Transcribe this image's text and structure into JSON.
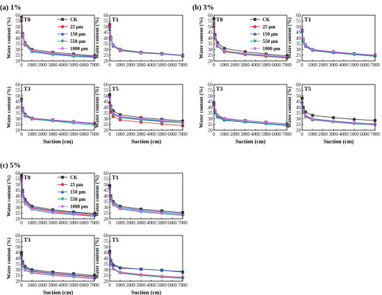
{
  "figure": {
    "ylabel": "Water content (%)",
    "xlabel": "Suction (cm)",
    "legend": [
      "CK",
      "25 μm",
      "150 μm",
      "550 μm",
      "1000 μm"
    ],
    "colors": {
      "CK": "#3a3a3a",
      "25 μm": "#e8333a",
      "150 μm": "#2b57c8",
      "550 μm": "#1aa58a",
      "1000 μm": "#c76fe0"
    },
    "x_ticks": [
      "0",
      "1000",
      "2000",
      "3000",
      "4000",
      "5000",
      "6000",
      "7000"
    ],
    "y_ticks": [
      "20",
      "25",
      "30",
      "35",
      "40",
      "45",
      "50",
      "55",
      "60"
    ]
  },
  "chart_data": [
    {
      "type": "line",
      "group": "(a) 1%",
      "title": "T0",
      "xlim": [
        0,
        7000
      ],
      "ylim": [
        20,
        60
      ],
      "x": [
        0,
        100,
        330,
        1000,
        3000,
        5000,
        7000
      ],
      "series": [
        {
          "name": "CK",
          "values": [
            58,
            44,
            36,
            30,
            27.5,
            26,
            24.5
          ]
        },
        {
          "name": "25 μm",
          "values": [
            55,
            42,
            34,
            29,
            26.5,
            25,
            24
          ]
        },
        {
          "name": "150 μm",
          "values": [
            57,
            43,
            35,
            28.5,
            26,
            24.5,
            23.5
          ]
        },
        {
          "name": "550 μm",
          "values": [
            56,
            42,
            34,
            28,
            25.5,
            24,
            23
          ]
        },
        {
          "name": "1000 μm",
          "values": [
            57,
            43,
            35,
            29,
            26.5,
            25,
            24
          ]
        }
      ]
    },
    {
      "type": "line",
      "group": "(a) 1%",
      "title": "T1",
      "xlim": [
        0,
        7000
      ],
      "ylim": [
        20,
        60
      ],
      "x": [
        0,
        100,
        330,
        1000,
        3000,
        5000,
        7000
      ],
      "series": [
        {
          "name": "CK",
          "values": [
            50,
            40,
            34,
            30,
            27.5,
            26.5,
            25
          ]
        },
        {
          "name": "25 μm",
          "values": [
            52,
            41,
            34,
            29.5,
            27,
            26,
            24.5
          ]
        },
        {
          "name": "150 μm",
          "values": [
            48,
            39,
            33,
            29,
            27,
            26,
            24.5
          ]
        },
        {
          "name": "550 μm",
          "values": [
            49,
            39,
            33,
            29,
            27,
            26,
            24.5
          ]
        },
        {
          "name": "1000 μm",
          "values": [
            50,
            40,
            34,
            29.5,
            27,
            26,
            25
          ]
        }
      ]
    },
    {
      "type": "line",
      "group": "(a) 1%",
      "title": "T3",
      "xlim": [
        0,
        7000
      ],
      "ylim": [
        20,
        60
      ],
      "x": [
        0,
        100,
        330,
        1000,
        3000,
        5000,
        7000
      ],
      "series": [
        {
          "name": "CK",
          "values": [
            47,
            39,
            34,
            30.5,
            29,
            27.5,
            26
          ]
        },
        {
          "name": "25 μm",
          "values": [
            46,
            38,
            33,
            30,
            28.5,
            27,
            25.5
          ]
        },
        {
          "name": "150 μm",
          "values": [
            47,
            38,
            33,
            30,
            28.5,
            27,
            25.5
          ]
        },
        {
          "name": "550 μm",
          "values": [
            45,
            37,
            32,
            29.5,
            28,
            26,
            24.5
          ]
        },
        {
          "name": "1000 μm",
          "values": [
            46,
            38,
            33,
            30,
            29,
            27.5,
            26
          ]
        }
      ]
    },
    {
      "type": "line",
      "group": "(a) 1%",
      "title": "T5",
      "xlim": [
        0,
        7000
      ],
      "ylim": [
        20,
        60
      ],
      "x": [
        0,
        100,
        330,
        1000,
        3000,
        5000,
        7000
      ],
      "series": [
        {
          "name": "CK",
          "values": [
            51,
            41,
            37,
            33.5,
            31,
            29.5,
            28
          ]
        },
        {
          "name": "25 μm",
          "values": [
            44,
            36,
            32,
            29,
            27,
            25.5,
            24
          ]
        },
        {
          "name": "150 μm",
          "values": [
            50,
            40,
            35,
            31.5,
            29.5,
            28,
            27
          ]
        },
        {
          "name": "550 μm",
          "values": [
            48,
            39,
            34,
            31,
            29,
            27.5,
            26.5
          ]
        },
        {
          "name": "1000 μm",
          "values": [
            49,
            40,
            35,
            32,
            30,
            28.5,
            27
          ]
        }
      ]
    },
    {
      "type": "line",
      "group": "(b) 3%",
      "title": "T0",
      "xlim": [
        0,
        7000
      ],
      "ylim": [
        20,
        60
      ],
      "x": [
        0,
        100,
        330,
        1000,
        3000,
        5000,
        7000
      ],
      "series": [
        {
          "name": "CK",
          "values": [
            57,
            43,
            36,
            31,
            28,
            26,
            24.5
          ]
        },
        {
          "name": "25 μm",
          "values": [
            50,
            40,
            33,
            28,
            25.5,
            24,
            22.5
          ]
        },
        {
          "name": "150 μm",
          "values": [
            53,
            41,
            34,
            29,
            26.5,
            25,
            23.5
          ]
        },
        {
          "name": "550 μm",
          "values": [
            52,
            40,
            33,
            28.5,
            26,
            24.5,
            23
          ]
        },
        {
          "name": "1000 μm",
          "values": [
            54,
            41,
            34,
            29,
            26.5,
            25,
            23.5
          ]
        }
      ]
    },
    {
      "type": "line",
      "group": "(b) 3%",
      "title": "T1",
      "xlim": [
        0,
        7000
      ],
      "ylim": [
        20,
        60
      ],
      "x": [
        0,
        100,
        330,
        1000,
        3000,
        5000,
        7000
      ],
      "series": [
        {
          "name": "CK",
          "values": [
            47,
            39,
            34,
            30,
            28,
            26.5,
            25
          ]
        },
        {
          "name": "25 μm",
          "values": [
            46,
            38,
            33,
            29.5,
            27.5,
            26,
            24.5
          ]
        },
        {
          "name": "150 μm",
          "values": [
            46,
            38,
            33,
            29.5,
            27.5,
            26,
            24.5
          ]
        },
        {
          "name": "550 μm",
          "values": [
            45,
            37,
            32.5,
            29,
            27,
            25.5,
            24
          ]
        },
        {
          "name": "1000 μm",
          "values": [
            47,
            39,
            34,
            30,
            28,
            26.5,
            25
          ]
        }
      ]
    },
    {
      "type": "line",
      "group": "(b) 3%",
      "title": "T3",
      "xlim": [
        0,
        7000
      ],
      "ylim": [
        20,
        60
      ],
      "x": [
        0,
        100,
        330,
        1000,
        3000,
        5000,
        7000
      ],
      "series": [
        {
          "name": "CK",
          "values": [
            44,
            37,
            33,
            30,
            28.5,
            27,
            25.5
          ]
        },
        {
          "name": "25 μm",
          "values": [
            42,
            36,
            32,
            29,
            27.5,
            26,
            24.5
          ]
        },
        {
          "name": "150 μm",
          "values": [
            43,
            36,
            32,
            29,
            27.5,
            26,
            24.5
          ]
        },
        {
          "name": "550 μm",
          "values": [
            42,
            35,
            31,
            28.5,
            27,
            25.5,
            24
          ]
        },
        {
          "name": "1000 μm",
          "values": [
            45,
            38,
            33.5,
            30.5,
            28.5,
            27,
            25.5
          ]
        }
      ]
    },
    {
      "type": "line",
      "group": "(b) 3%",
      "title": "T5",
      "xlim": [
        0,
        7000
      ],
      "ylim": [
        20,
        60
      ],
      "x": [
        0,
        100,
        330,
        1000,
        3000,
        5000,
        7000
      ],
      "series": [
        {
          "name": "CK",
          "values": [
            48,
            40,
            36,
            33,
            31,
            29.5,
            28.5
          ]
        },
        {
          "name": "25 μm",
          "values": [
            44,
            36,
            32,
            29,
            27.5,
            26,
            25
          ]
        },
        {
          "name": "150 μm",
          "values": [
            45,
            37,
            33,
            30,
            28,
            26.5,
            25.5
          ]
        },
        {
          "name": "550 μm",
          "values": [
            43,
            35.5,
            31.5,
            29,
            27,
            25.5,
            24.5
          ]
        },
        {
          "name": "1000 μm",
          "values": [
            44,
            36.5,
            32.5,
            29.5,
            27.5,
            26,
            25
          ]
        }
      ]
    },
    {
      "type": "line",
      "group": "(c) 5%",
      "title": "T0",
      "xlim": [
        0,
        7000
      ],
      "ylim": [
        20,
        60
      ],
      "x": [
        0,
        100,
        330,
        1000,
        3000,
        5000,
        7000
      ],
      "series": [
        {
          "name": "CK",
          "values": [
            58,
            45,
            37,
            31,
            28,
            26,
            24.5
          ]
        },
        {
          "name": "25 μm",
          "values": [
            55,
            43,
            35,
            29.5,
            26.5,
            24.5,
            23
          ]
        },
        {
          "name": "150 μm",
          "values": [
            57,
            44,
            36,
            30,
            27,
            25.5,
            24
          ]
        },
        {
          "name": "550 μm",
          "values": [
            52,
            40,
            33,
            28,
            25,
            23.5,
            22
          ]
        },
        {
          "name": "1000 μm",
          "values": [
            54,
            41,
            34,
            28.5,
            25.5,
            24,
            22.5
          ]
        }
      ]
    },
    {
      "type": "line",
      "group": "(c) 5%",
      "title": "T1",
      "xlim": [
        0,
        7000
      ],
      "ylim": [
        20,
        60
      ],
      "x": [
        0,
        100,
        330,
        1000,
        3000,
        5000,
        7000
      ],
      "series": [
        {
          "name": "CK",
          "values": [
            49,
            40,
            35,
            31,
            28.5,
            27,
            25.5
          ]
        },
        {
          "name": "25 μm",
          "values": [
            47,
            38,
            33,
            29,
            26.5,
            25,
            23.5
          ]
        },
        {
          "name": "150 μm",
          "values": [
            48,
            39,
            34,
            30,
            27.5,
            26,
            24.5
          ]
        },
        {
          "name": "550 μm",
          "values": [
            46,
            37,
            32,
            28.5,
            26,
            24.5,
            23
          ]
        },
        {
          "name": "1000 μm",
          "values": [
            47,
            38,
            33,
            29,
            26.5,
            25,
            23.5
          ]
        }
      ]
    },
    {
      "type": "line",
      "group": "(c) 5%",
      "title": "T3",
      "xlim": [
        0,
        7000
      ],
      "ylim": [
        20,
        60
      ],
      "x": [
        0,
        100,
        330,
        1000,
        3000,
        5000,
        7000
      ],
      "series": [
        {
          "name": "CK",
          "values": [
            45,
            37,
            33,
            30,
            28,
            26.5,
            25
          ]
        },
        {
          "name": "25 μm",
          "values": [
            43,
            35.5,
            31.5,
            28.5,
            26.5,
            25,
            23.5
          ]
        },
        {
          "name": "150 μm",
          "values": [
            44,
            36,
            32,
            29,
            27,
            25.5,
            24
          ]
        },
        {
          "name": "550 μm",
          "values": [
            41,
            34,
            30,
            27.5,
            25.5,
            24,
            22.5
          ]
        },
        {
          "name": "1000 μm",
          "values": [
            40,
            33,
            29.5,
            27,
            25,
            23.5,
            22
          ]
        }
      ]
    },
    {
      "type": "line",
      "group": "(c) 5%",
      "title": "T5",
      "xlim": [
        0,
        7000
      ],
      "ylim": [
        20,
        60
      ],
      "x": [
        0,
        100,
        330,
        1000,
        3000,
        5000,
        7000
      ],
      "series": [
        {
          "name": "CK",
          "values": [
            46,
            38,
            34,
            31.5,
            30.5,
            29.5,
            28
          ]
        },
        {
          "name": "25 μm",
          "values": [
            44,
            35,
            31,
            27.5,
            25.5,
            24,
            23
          ]
        },
        {
          "name": "150 μm",
          "values": [
            47,
            39,
            35,
            32,
            30.5,
            29.5,
            28.5
          ]
        },
        {
          "name": "550 μm",
          "values": [
            43,
            34.5,
            30.5,
            27,
            25,
            23.5,
            22.5
          ]
        },
        {
          "name": "1000 μm",
          "values": [
            44,
            35.5,
            31,
            28,
            26,
            24.5,
            23.5
          ]
        }
      ]
    }
  ]
}
